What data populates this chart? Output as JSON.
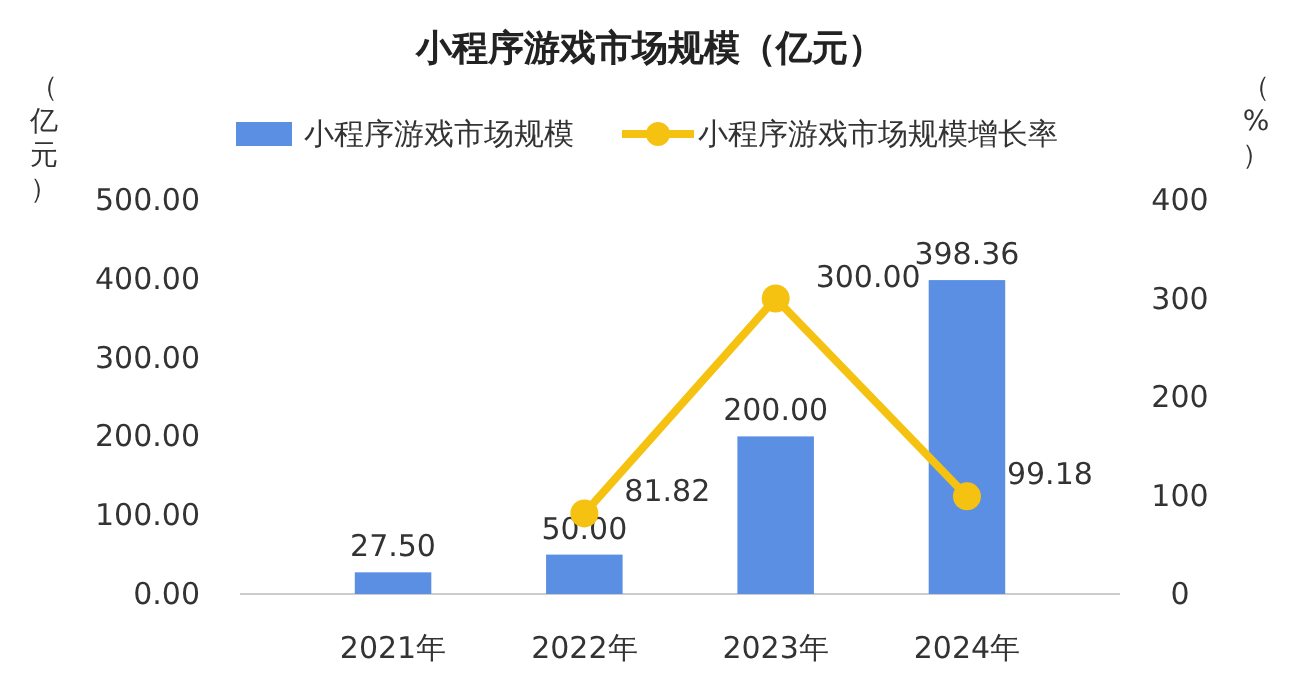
{
  "chart_data": {
    "type": "bar",
    "title": "小程序游戏市场规模（亿元）",
    "ylabel": "（亿元）",
    "y2label": "（%）",
    "categories": [
      "2021年",
      "2022年",
      "2023年",
      "2024年"
    ],
    "series": [
      {
        "name": "小程序游戏市场规模",
        "color": "#5b8fe3",
        "values": [
          27.5,
          50,
          200,
          398.36
        ],
        "value_labels": [
          "27.50",
          "50.00",
          "200.00",
          "398.36"
        ]
      },
      {
        "name": "小程序游戏市场规模增长率",
        "type": "line",
        "axis": "y2",
        "color": "#f5c211",
        "values": [
          null,
          81.82,
          300,
          99.18
        ],
        "value_labels": [
          null,
          "81.82",
          "300.00",
          "99.18"
        ],
        "marker": "circle"
      }
    ],
    "ylim": [
      0,
      500
    ],
    "yticks": [
      {
        "value": 0,
        "label": "0.00"
      },
      {
        "value": 100,
        "label": "100.00"
      },
      {
        "value": 200,
        "label": "200.00"
      },
      {
        "value": 300,
        "label": "300.00"
      },
      {
        "value": 400,
        "label": "400.00"
      },
      {
        "value": 500,
        "label": "500.00"
      }
    ],
    "y2lim": [
      0,
      400
    ],
    "y2ticks": [
      0,
      100,
      200,
      300,
      400
    ],
    "legend": "top",
    "grid": false
  }
}
